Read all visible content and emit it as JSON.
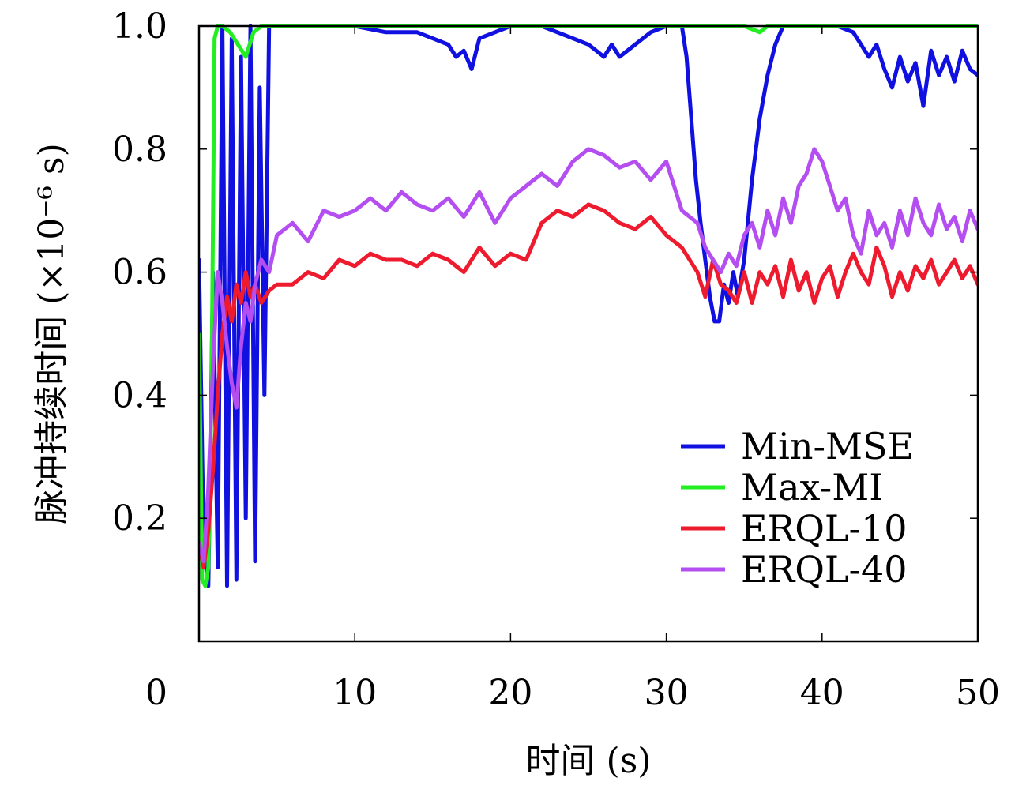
{
  "chart_data": {
    "type": "line",
    "xlabel": "时间 (s)",
    "ylabel": "脉冲持续时间 (×10⁻⁶ s)",
    "xlim": [
      0,
      50
    ],
    "ylim": [
      0,
      1.0
    ],
    "x_ticks": [
      "0",
      "10",
      "20",
      "30",
      "40",
      "50"
    ],
    "y_ticks": [
      "0.2",
      "0.4",
      "0.6",
      "0.8",
      "1.0"
    ],
    "grid": false,
    "legend_position": "bottom-right",
    "series": [
      {
        "name": "Min-MSE",
        "color": "#1010e0",
        "x": [
          0,
          0.3,
          0.6,
          0.9,
          1.2,
          1.5,
          1.8,
          2.1,
          2.4,
          2.7,
          3.0,
          3.3,
          3.6,
          3.9,
          4.2,
          4.5,
          5,
          6,
          8,
          10,
          12,
          14,
          15,
          16,
          16.5,
          17,
          17.5,
          18,
          19,
          20,
          21,
          22,
          23,
          24,
          25,
          25.5,
          26,
          26.5,
          27,
          28,
          29,
          30,
          30.5,
          31,
          31.3,
          31.6,
          31.9,
          32.2,
          32.5,
          32.8,
          33.1,
          33.4,
          33.7,
          34,
          34.3,
          34.6,
          35,
          35.5,
          36,
          36.5,
          37,
          37.5,
          38,
          39,
          40,
          41,
          42,
          42.5,
          43,
          43.5,
          44,
          44.5,
          45,
          45.5,
          46,
          46.5,
          47,
          47.5,
          48,
          48.5,
          49,
          49.5,
          50
        ],
        "y": [
          0.62,
          0.15,
          0.09,
          0.6,
          0.12,
          1.0,
          0.09,
          0.98,
          0.1,
          0.95,
          0.2,
          1.0,
          0.13,
          0.9,
          0.4,
          1.0,
          1.0,
          1.0,
          1.0,
          1.0,
          0.99,
          0.99,
          0.98,
          0.97,
          0.95,
          0.96,
          0.93,
          0.98,
          0.99,
          1.0,
          1.0,
          1.0,
          0.99,
          0.98,
          0.97,
          0.96,
          0.95,
          0.97,
          0.95,
          0.97,
          0.99,
          1.0,
          1.0,
          1.0,
          0.95,
          0.85,
          0.75,
          0.68,
          0.62,
          0.56,
          0.52,
          0.52,
          0.58,
          0.55,
          0.6,
          0.56,
          0.62,
          0.75,
          0.85,
          0.92,
          0.97,
          1.0,
          1.0,
          1.0,
          1.0,
          1.0,
          0.99,
          0.97,
          0.95,
          0.97,
          0.93,
          0.9,
          0.95,
          0.91,
          0.94,
          0.87,
          0.96,
          0.92,
          0.95,
          0.91,
          0.96,
          0.93,
          0.92
        ]
      },
      {
        "name": "Max-MI",
        "color": "#22ee22",
        "x": [
          0,
          0.2,
          0.4,
          0.6,
          0.8,
          1.0,
          1.2,
          1.5,
          2.0,
          2.5,
          3.0,
          3.5,
          4.0,
          5,
          10,
          20,
          30,
          35,
          36,
          36.5,
          37,
          40,
          50
        ],
        "y": [
          0.5,
          0.1,
          0.09,
          0.12,
          0.4,
          0.98,
          1.0,
          1.0,
          0.99,
          0.97,
          0.95,
          0.99,
          1.0,
          1.0,
          1.0,
          1.0,
          1.0,
          1.0,
          0.99,
          1.0,
          1.0,
          1.0,
          1.0
        ]
      },
      {
        "name": "ERQL-10",
        "color": "#ee1a2e",
        "x": [
          0,
          0.3,
          0.6,
          0.9,
          1.2,
          1.5,
          1.8,
          2.1,
          2.4,
          2.7,
          3.0,
          3.3,
          3.6,
          4.0,
          4.5,
          5,
          6,
          7,
          8,
          9,
          10,
          11,
          12,
          13,
          14,
          15,
          16,
          17,
          18,
          19,
          20,
          21,
          22,
          23,
          24,
          25,
          26,
          27,
          28,
          29,
          30,
          31,
          32,
          32.5,
          33,
          33.5,
          34,
          34.5,
          35,
          35.5,
          36,
          36.5,
          37,
          37.5,
          38,
          38.5,
          39,
          39.5,
          40,
          40.5,
          41,
          41.5,
          42,
          42.5,
          43,
          43.5,
          44,
          44.5,
          45,
          45.5,
          46,
          46.5,
          47,
          47.5,
          48,
          48.5,
          49,
          49.5,
          50
        ],
        "y": [
          0.16,
          0.12,
          0.18,
          0.28,
          0.4,
          0.5,
          0.56,
          0.52,
          0.58,
          0.55,
          0.6,
          0.56,
          0.58,
          0.55,
          0.57,
          0.58,
          0.58,
          0.6,
          0.59,
          0.62,
          0.61,
          0.63,
          0.62,
          0.62,
          0.61,
          0.63,
          0.62,
          0.6,
          0.64,
          0.61,
          0.63,
          0.62,
          0.68,
          0.7,
          0.69,
          0.71,
          0.7,
          0.68,
          0.67,
          0.69,
          0.66,
          0.64,
          0.6,
          0.56,
          0.62,
          0.58,
          0.57,
          0.55,
          0.6,
          0.55,
          0.6,
          0.58,
          0.61,
          0.56,
          0.62,
          0.57,
          0.6,
          0.55,
          0.59,
          0.61,
          0.56,
          0.6,
          0.63,
          0.6,
          0.58,
          0.64,
          0.61,
          0.56,
          0.6,
          0.57,
          0.61,
          0.59,
          0.62,
          0.58,
          0.6,
          0.62,
          0.59,
          0.61,
          0.58
        ]
      },
      {
        "name": "ERQL-40",
        "color": "#b44ef0",
        "x": [
          0,
          0.3,
          0.6,
          0.9,
          1.2,
          1.5,
          1.8,
          2.1,
          2.4,
          2.7,
          3.0,
          3.3,
          3.6,
          4.0,
          4.5,
          5,
          6,
          7,
          8,
          9,
          10,
          11,
          12,
          13,
          14,
          15,
          16,
          17,
          18,
          19,
          20,
          21,
          22,
          23,
          24,
          25,
          26,
          27,
          28,
          29,
          30,
          31,
          32,
          32.5,
          33,
          33.5,
          34,
          34.5,
          35,
          35.5,
          36,
          36.5,
          37,
          37.5,
          38,
          38.5,
          39,
          39.5,
          40,
          40.5,
          41,
          41.5,
          42,
          42.5,
          43,
          43.5,
          44,
          44.5,
          45,
          45.5,
          46,
          46.5,
          47,
          47.5,
          48,
          48.5,
          49,
          49.5,
          50
        ],
        "y": [
          0.16,
          0.13,
          0.25,
          0.45,
          0.6,
          0.55,
          0.48,
          0.42,
          0.38,
          0.48,
          0.55,
          0.52,
          0.58,
          0.62,
          0.6,
          0.66,
          0.68,
          0.65,
          0.7,
          0.69,
          0.7,
          0.72,
          0.7,
          0.73,
          0.71,
          0.7,
          0.72,
          0.69,
          0.73,
          0.68,
          0.72,
          0.74,
          0.76,
          0.74,
          0.78,
          0.8,
          0.79,
          0.77,
          0.78,
          0.75,
          0.78,
          0.7,
          0.68,
          0.64,
          0.62,
          0.6,
          0.63,
          0.61,
          0.66,
          0.68,
          0.64,
          0.7,
          0.66,
          0.72,
          0.68,
          0.74,
          0.76,
          0.8,
          0.78,
          0.74,
          0.7,
          0.72,
          0.66,
          0.63,
          0.7,
          0.66,
          0.68,
          0.64,
          0.7,
          0.66,
          0.72,
          0.68,
          0.66,
          0.71,
          0.67,
          0.69,
          0.65,
          0.7,
          0.67
        ]
      }
    ]
  }
}
